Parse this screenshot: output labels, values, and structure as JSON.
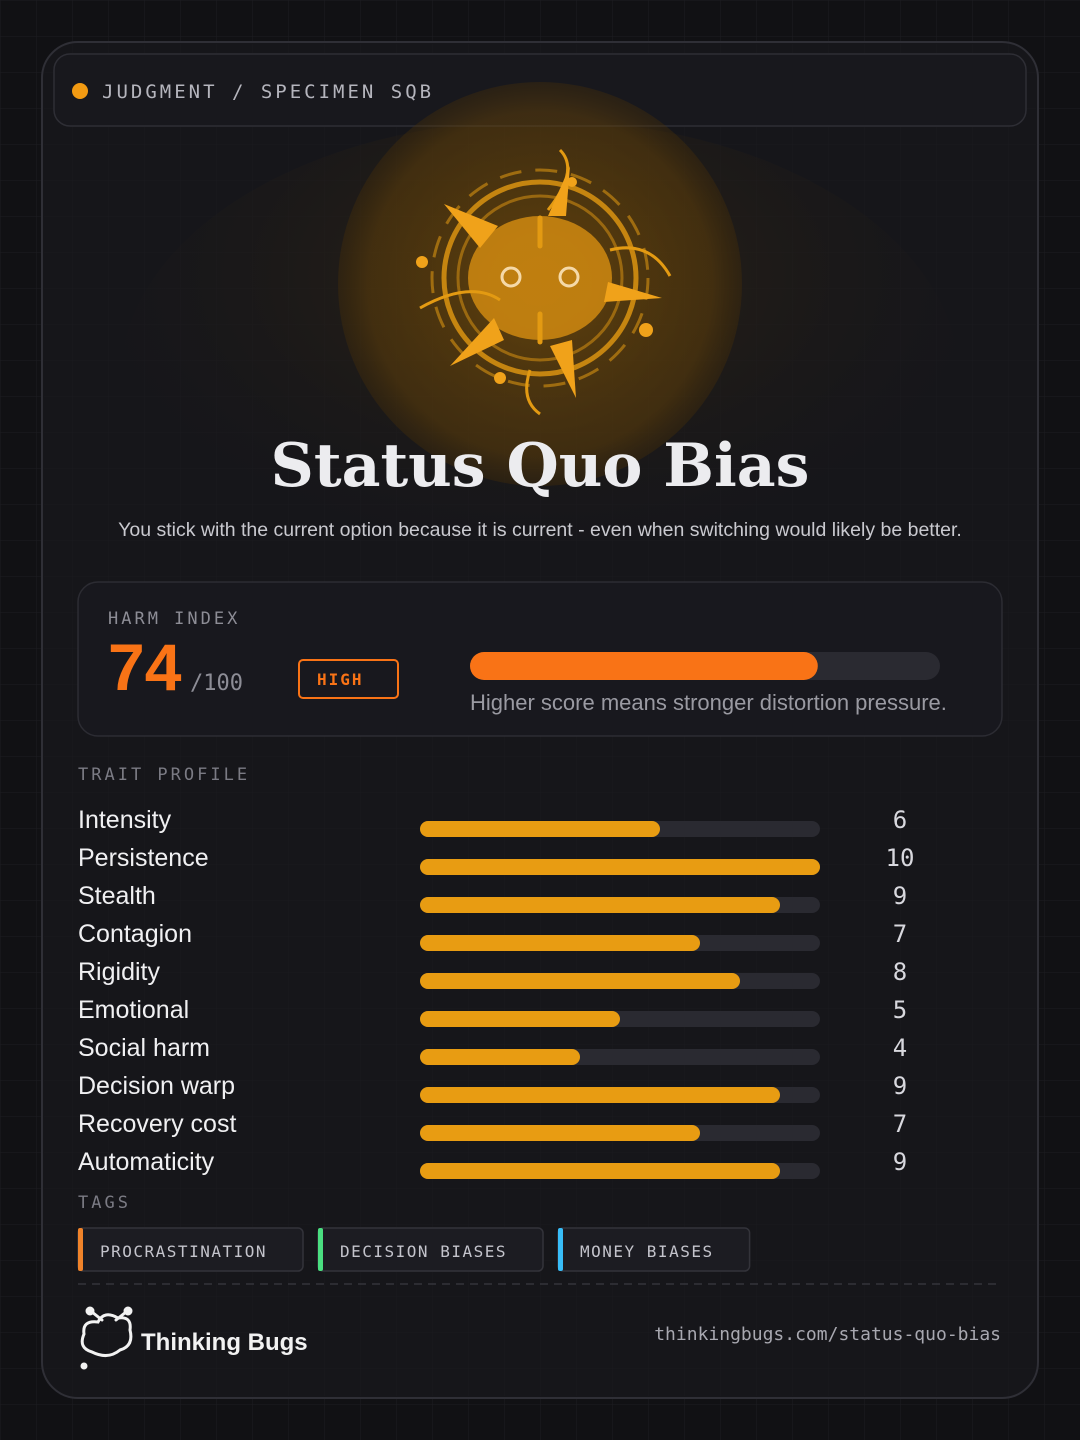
{
  "header": {
    "label": "JUDGMENT / SPECIMEN SQB",
    "dot_color": "#f29a12"
  },
  "title": "Status Quo Bias",
  "description": "You stick with the current option because it is current - even when switching would likely be better.",
  "harm": {
    "label": "HARM INDEX",
    "score": 74,
    "score_max": {
      "value": 100,
      "label": "/100"
    },
    "level": "HIGH",
    "note": "Higher score means stronger distortion pressure.",
    "color": "#f97316"
  },
  "traits": {
    "label": "TRAIT PROFILE",
    "xlim": [
      0,
      10
    ],
    "color": "#e89c12",
    "items": [
      {
        "name": "Intensity",
        "value": 6
      },
      {
        "name": "Persistence",
        "value": 10
      },
      {
        "name": "Stealth",
        "value": 9
      },
      {
        "name": "Contagion",
        "value": 7
      },
      {
        "name": "Rigidity",
        "value": 8
      },
      {
        "name": "Emotional",
        "value": 5
      },
      {
        "name": "Social harm",
        "value": 4
      },
      {
        "name": "Decision warp",
        "value": 9
      },
      {
        "name": "Recovery cost",
        "value": 7
      },
      {
        "name": "Automaticity",
        "value": 9
      }
    ]
  },
  "tags": {
    "label": "TAGS",
    "items": [
      {
        "name": "PROCRASTINATION",
        "color": "#f0832a"
      },
      {
        "name": "DECISION BIASES",
        "color": "#4ade80"
      },
      {
        "name": "MONEY BIASES",
        "color": "#38bdf8"
      }
    ]
  },
  "footer": {
    "brand": "Thinking Bugs",
    "url": "thinkingbugs.com/status-quo-bias"
  }
}
